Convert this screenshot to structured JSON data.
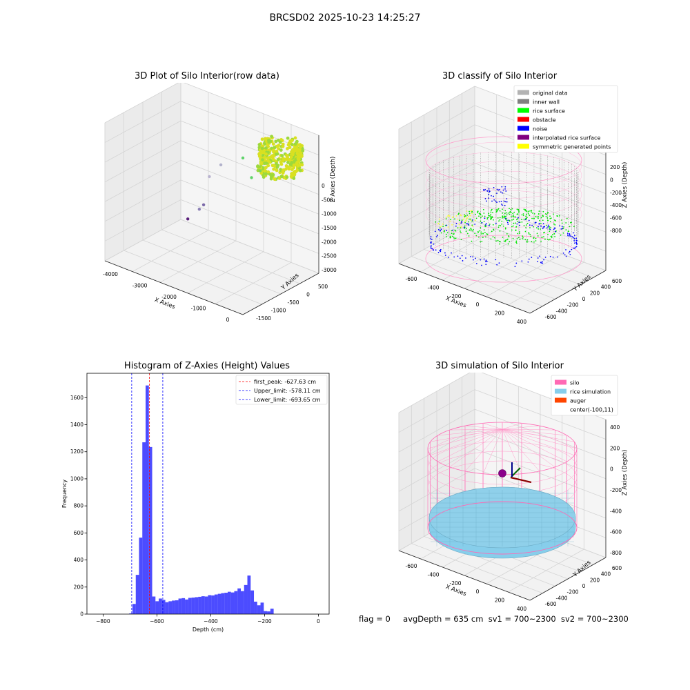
{
  "figure": {
    "suptitle": "BRCSD02 2025-10-23 14:25:27",
    "footer": {
      "flag": "flag = 0",
      "avg_depth": "avgDepth = 635 cm",
      "sv1": "sv1 = 700~2300",
      "sv2": "sv2 = 700~2300"
    }
  },
  "chart_data": [
    {
      "type": "scatter",
      "title": "3D Plot of Silo Interior(row data)",
      "xlabel": "X Axies",
      "ylabel": "Y Axies",
      "zlabel": "Z Axies (Depth)",
      "x_ticks": [
        "-4000",
        "-3000",
        "-2000",
        "-1000",
        "0"
      ],
      "y_ticks": [
        "500",
        "0",
        "-500",
        "-1000",
        "-1500"
      ],
      "z_ticks": [
        "0",
        "-500",
        "-1000",
        "-1500",
        "-2000",
        "-2500",
        "-3000"
      ],
      "xlim": [
        -4300,
        500
      ],
      "ylim": [
        -1800,
        700
      ],
      "zlim": [
        -3300,
        100
      ],
      "colormap": "viridis by depth",
      "points": [
        {
          "x": -3950,
          "y": 600,
          "z": -3150,
          "color": "#5a1f7a"
        },
        {
          "x": -3550,
          "y": 600,
          "z": -2800,
          "color": "#8a7fb5"
        },
        {
          "x": -3400,
          "y": 600,
          "z": -2650,
          "color": "#7b69a8"
        },
        {
          "x": -3200,
          "y": 600,
          "z": -1900,
          "color": "#b9b3cf"
        },
        {
          "x": -2800,
          "y": 600,
          "z": -1500,
          "color": "#b2b2cc"
        },
        {
          "x": -1400,
          "y": 0,
          "z": -700,
          "color": "#5fd36a"
        },
        {
          "x": -1100,
          "y": 0,
          "z": -1100,
          "color": "#5fd36a"
        },
        {
          "x": -800,
          "y": 0,
          "z": -850,
          "color": "#7ad45a"
        }
      ],
      "main_cluster": {
        "x": [
          -700,
          500
        ],
        "y": [
          -500,
          500
        ],
        "z": [
          -650,
          0
        ],
        "colors": [
          "#d9e021",
          "#9dd93b"
        ]
      }
    },
    {
      "type": "scatter",
      "title": "3D classify of Silo Interior",
      "xlabel": "X Axies",
      "ylabel": "Y Axies",
      "zlabel": "Z Axies (Depth)",
      "x_ticks": [
        "-600",
        "-400",
        "-200",
        "0",
        "200",
        "400"
      ],
      "y_ticks": [
        "600",
        "400",
        "200",
        "0",
        "-200",
        "-400",
        "-600"
      ],
      "z_ticks": [
        "200",
        "0",
        "-200",
        "-400",
        "-600",
        "-800"
      ],
      "xlim": [
        -700,
        500
      ],
      "ylim": [
        -650,
        650
      ],
      "zlim": [
        -950,
        400
      ],
      "legend": [
        {
          "label": "original data",
          "color": "#b3b3b3"
        },
        {
          "label": "inner wall",
          "color": "#808080"
        },
        {
          "label": "rice surface",
          "color": "#00ff00"
        },
        {
          "label": "obstacle",
          "color": "#ff0000"
        },
        {
          "label": "noise",
          "color": "#0000ff"
        },
        {
          "label": "interpolated rice surface",
          "color": "#800080"
        },
        {
          "label": "symmetric generated points",
          "color": "#ffff00"
        }
      ],
      "legend_loc": "upper right"
    },
    {
      "type": "bar",
      "title": "Histogram of Z-Axies (Height) Values",
      "xlabel": "Depth (cm)",
      "ylabel": "Frequency",
      "xlim": [
        -860,
        40
      ],
      "ylim": [
        0,
        1780
      ],
      "x_ticks": [
        -800,
        -600,
        -400,
        -200,
        0
      ],
      "y_ticks": [
        0,
        200,
        400,
        600,
        800,
        1000,
        1200,
        1400,
        1600
      ],
      "bar_color": "#0000ff",
      "bin_start": -703,
      "bin_width": 12.2,
      "values": [
        5,
        75,
        290,
        565,
        1270,
        1690,
        1235,
        130,
        95,
        115,
        105,
        88,
        95,
        100,
        102,
        115,
        118,
        108,
        120,
        122,
        125,
        128,
        132,
        130,
        140,
        138,
        145,
        150,
        155,
        158,
        165,
        160,
        170,
        190,
        170,
        215,
        285,
        175,
        92,
        65,
        85,
        22,
        20,
        40
      ],
      "vlines": [
        {
          "label": "first_peak: -627.63 cm",
          "x": -627.63,
          "color": "#ff0000"
        },
        {
          "label": "Upper_limit: -578.11 cm",
          "x": -578.11,
          "color": "#0000ff"
        },
        {
          "label": "Lower_limit: -693.65 cm",
          "x": -693.65,
          "color": "#0000ff"
        }
      ],
      "legend_loc": "upper right"
    },
    {
      "type": "scatter",
      "title": "3D simulation of Silo Interior",
      "xlabel": "X Axies",
      "ylabel": "Y Axies",
      "zlabel": "Z Axies (Depth)",
      "x_ticks": [
        "-600",
        "-400",
        "-200",
        "0",
        "200",
        "400"
      ],
      "y_ticks": [
        "600",
        "400",
        "200",
        "0",
        "-200",
        "-400",
        "-600"
      ],
      "z_ticks": [
        "400",
        "200",
        "0",
        "-200",
        "-400",
        "-600",
        "-800"
      ],
      "xlim": [
        -700,
        500
      ],
      "ylim": [
        -650,
        650
      ],
      "zlim": [
        -950,
        450
      ],
      "legend": [
        {
          "label": "silo",
          "color": "#ff69b4"
        },
        {
          "label": "rice simulation",
          "color": "#87ceeb"
        },
        {
          "label": "auger",
          "color": "#ff4500"
        },
        {
          "label": "center(-100,11)",
          "color": ""
        }
      ],
      "legend_loc": "upper right"
    }
  ]
}
